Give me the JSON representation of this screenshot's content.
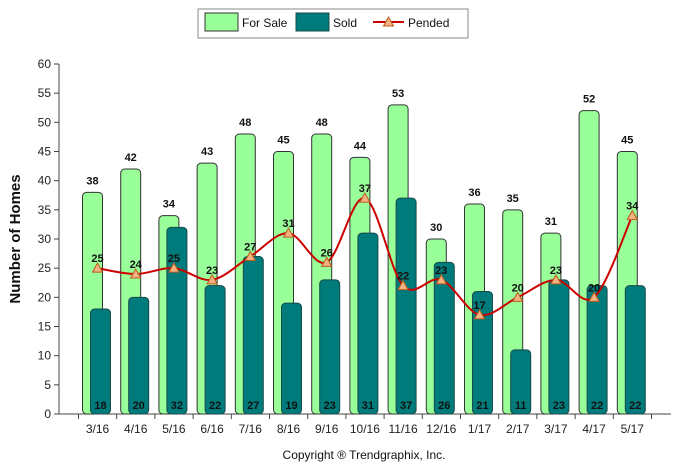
{
  "chart_data": {
    "type": "bar",
    "categories": [
      "3/16",
      "4/16",
      "5/16",
      "6/16",
      "7/16",
      "8/16",
      "9/16",
      "10/16",
      "11/16",
      "12/16",
      "1/17",
      "2/17",
      "3/17",
      "4/17",
      "5/17"
    ],
    "series": [
      {
        "name": "For Sale",
        "type": "bar",
        "color": "#99ff99",
        "values": [
          38,
          42,
          34,
          43,
          48,
          45,
          48,
          44,
          53,
          30,
          36,
          35,
          31,
          52,
          45
        ]
      },
      {
        "name": "Sold",
        "type": "bar",
        "color": "#007b7b",
        "values": [
          18,
          20,
          32,
          22,
          27,
          19,
          23,
          31,
          37,
          26,
          21,
          11,
          23,
          22,
          22
        ]
      },
      {
        "name": "Pended",
        "type": "line",
        "color": "#cc0000",
        "values": [
          25,
          24,
          25,
          23,
          27,
          31,
          26,
          37,
          22,
          23,
          17,
          20,
          23,
          20,
          34
        ]
      }
    ],
    "ylabel": "Number of Homes",
    "xlabel": "",
    "ylim": [
      0,
      60
    ],
    "yticks": [
      0,
      5,
      10,
      15,
      20,
      25,
      30,
      35,
      40,
      45,
      50,
      55,
      60
    ],
    "grid": false,
    "legend_position": "top-center"
  },
  "footer": {
    "copyright": "Copyright ® Trendgraphix, Inc."
  }
}
